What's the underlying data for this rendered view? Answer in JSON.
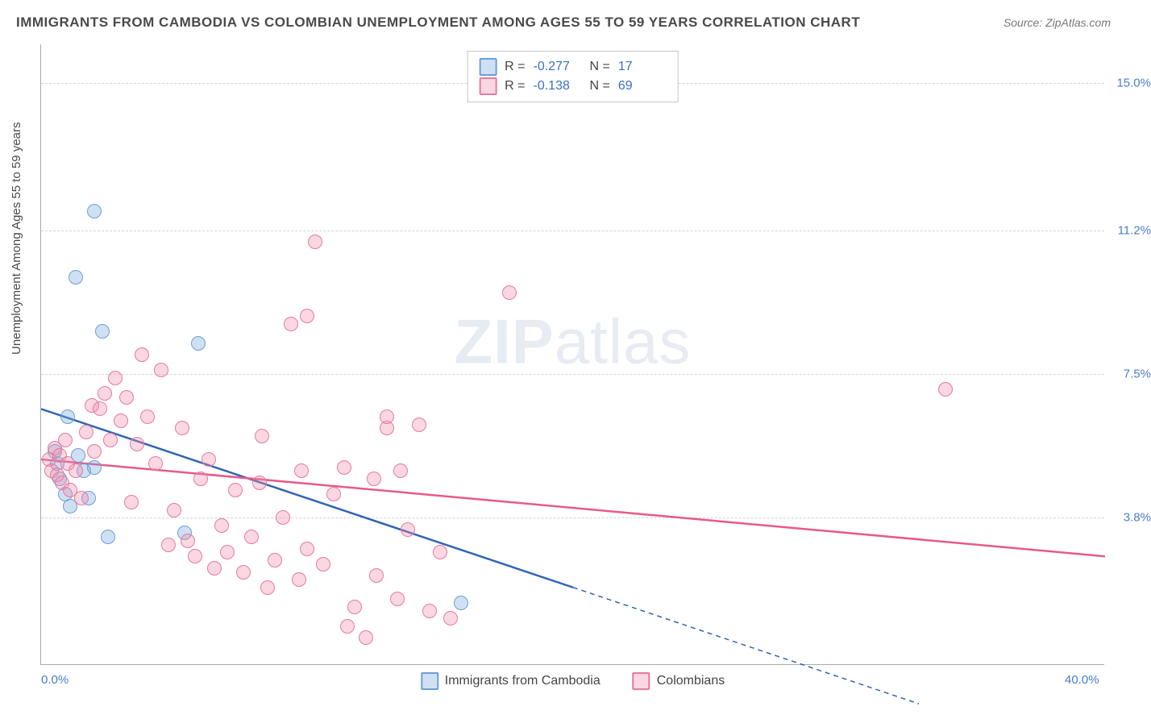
{
  "title": "IMMIGRANTS FROM CAMBODIA VS COLOMBIAN UNEMPLOYMENT AMONG AGES 55 TO 59 YEARS CORRELATION CHART",
  "source": "Source: ZipAtlas.com",
  "ylabel": "Unemployment Among Ages 55 to 59 years",
  "watermark_a": "ZIP",
  "watermark_b": "atlas",
  "chart": {
    "type": "scatter",
    "xlim": [
      0,
      40
    ],
    "ylim": [
      0,
      16
    ],
    "xticks": [
      {
        "v": 0,
        "label": "0.0%"
      },
      {
        "v": 40,
        "label": "40.0%"
      }
    ],
    "yticks": [
      {
        "v": 3.8,
        "label": "3.8%"
      },
      {
        "v": 7.5,
        "label": "7.5%"
      },
      {
        "v": 11.2,
        "label": "11.2%"
      },
      {
        "v": 15.0,
        "label": "15.0%"
      }
    ],
    "background_color": "#ffffff",
    "grid_color": "#d5d5d5",
    "marker_radius": 9,
    "series": [
      {
        "id": "cambodia",
        "label": "Immigrants from Cambodia",
        "fill": "rgba(120,165,220,0.35)",
        "stroke": "#6b9fd8",
        "line_color": "#2f65b0",
        "R": "-0.277",
        "N": "17",
        "trend": {
          "x1": 0,
          "y1": 6.6,
          "x2": 20,
          "y2": 2.0,
          "x2_dash": 33,
          "y2_dash": -1.0
        },
        "points": [
          [
            0.6,
            5.2
          ],
          [
            0.7,
            4.8
          ],
          [
            0.9,
            4.4
          ],
          [
            1.0,
            6.4
          ],
          [
            1.1,
            4.1
          ],
          [
            1.3,
            10.0
          ],
          [
            2.0,
            11.7
          ],
          [
            2.3,
            8.6
          ],
          [
            2.5,
            3.3
          ],
          [
            1.8,
            4.3
          ],
          [
            1.6,
            5.0
          ],
          [
            5.9,
            8.3
          ],
          [
            5.4,
            3.4
          ],
          [
            0.5,
            5.5
          ],
          [
            1.4,
            5.4
          ],
          [
            2.0,
            5.1
          ],
          [
            15.8,
            1.6
          ]
        ]
      },
      {
        "id": "colombia",
        "label": "Colombians",
        "fill": "rgba(240,140,170,0.35)",
        "stroke": "#e77aa0",
        "line_color": "#e65a8a",
        "R": "-0.138",
        "N": "69",
        "trend": {
          "x1": 0,
          "y1": 5.3,
          "x2": 40,
          "y2": 2.8
        },
        "points": [
          [
            0.3,
            5.3
          ],
          [
            0.4,
            5.0
          ],
          [
            0.5,
            5.6
          ],
          [
            0.6,
            4.9
          ],
          [
            0.7,
            5.4
          ],
          [
            0.8,
            4.7
          ],
          [
            0.9,
            5.8
          ],
          [
            1.0,
            5.2
          ],
          [
            1.1,
            4.5
          ],
          [
            1.3,
            5.0
          ],
          [
            1.5,
            4.3
          ],
          [
            1.7,
            6.0
          ],
          [
            1.9,
            6.7
          ],
          [
            2.0,
            5.5
          ],
          [
            2.2,
            6.6
          ],
          [
            2.4,
            7.0
          ],
          [
            2.6,
            5.8
          ],
          [
            2.8,
            7.4
          ],
          [
            3.0,
            6.3
          ],
          [
            3.2,
            6.9
          ],
          [
            3.4,
            4.2
          ],
          [
            3.6,
            5.7
          ],
          [
            3.8,
            8.0
          ],
          [
            4.0,
            6.4
          ],
          [
            4.3,
            5.2
          ],
          [
            4.5,
            7.6
          ],
          [
            4.8,
            3.1
          ],
          [
            5.0,
            4.0
          ],
          [
            5.3,
            6.1
          ],
          [
            5.5,
            3.2
          ],
          [
            5.8,
            2.8
          ],
          [
            6.0,
            4.8
          ],
          [
            6.3,
            5.3
          ],
          [
            6.5,
            2.5
          ],
          [
            6.8,
            3.6
          ],
          [
            7.0,
            2.9
          ],
          [
            7.3,
            4.5
          ],
          [
            7.6,
            2.4
          ],
          [
            7.9,
            3.3
          ],
          [
            8.2,
            4.7
          ],
          [
            8.5,
            2.0
          ],
          [
            8.8,
            2.7
          ],
          [
            9.1,
            3.8
          ],
          [
            9.4,
            8.8
          ],
          [
            9.7,
            2.2
          ],
          [
            10.0,
            3.0
          ],
          [
            10.3,
            10.9
          ],
          [
            10.6,
            2.6
          ],
          [
            11.0,
            4.4
          ],
          [
            11.4,
            5.1
          ],
          [
            11.8,
            1.5
          ],
          [
            12.2,
            0.7
          ],
          [
            12.6,
            2.3
          ],
          [
            13.0,
            6.1
          ],
          [
            13.4,
            1.7
          ],
          [
            13.8,
            3.5
          ],
          [
            14.2,
            6.2
          ],
          [
            14.6,
            1.4
          ],
          [
            15.0,
            2.9
          ],
          [
            15.4,
            1.2
          ],
          [
            17.6,
            9.6
          ],
          [
            13.0,
            6.4
          ],
          [
            10.0,
            9.0
          ],
          [
            12.5,
            4.8
          ],
          [
            11.5,
            1.0
          ],
          [
            9.8,
            5.0
          ],
          [
            8.3,
            5.9
          ],
          [
            13.5,
            5.0
          ],
          [
            34.0,
            7.1
          ]
        ]
      }
    ]
  },
  "legend_top": {
    "r_label": "R =",
    "n_label": "N ="
  }
}
